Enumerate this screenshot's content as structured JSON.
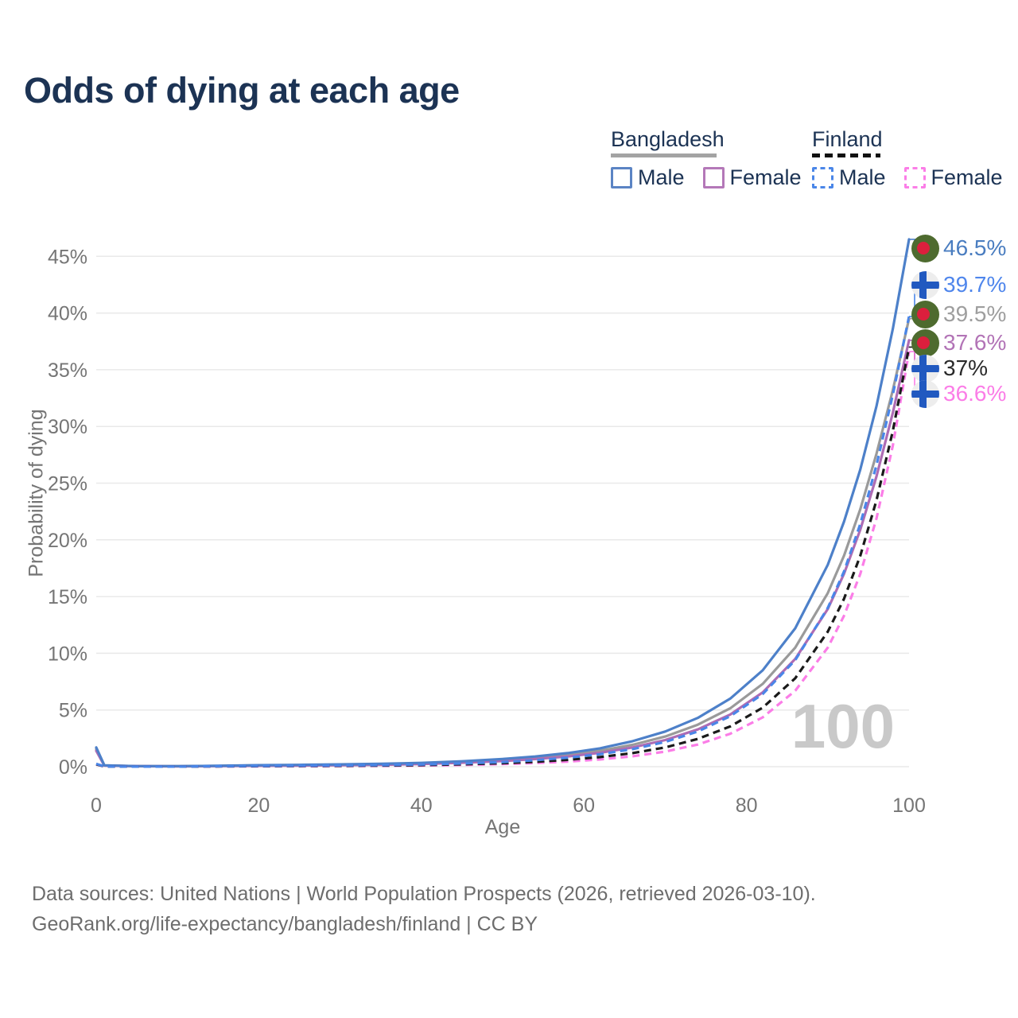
{
  "page": {
    "title": "Odds of dying at each age",
    "watermark_age": "100",
    "footer_line1": "Data sources: United Nations | World Population Prospects (2026, retrieved 2026-03-10).",
    "footer_line2": "GeoRank.org/life-expectancy/bangladesh/finland | CC BY"
  },
  "legend": {
    "bangladesh": {
      "label": "Bangladesh",
      "male_label": "Male",
      "female_label": "Female"
    },
    "finland": {
      "label": "Finland",
      "male_label": "Male",
      "female_label": "Female"
    }
  },
  "colors": {
    "title_text": "#1c3354",
    "axis_text": "#757575",
    "grid_line": "#e9e9e9",
    "watermark": "#c9c9c9",
    "footer_text": "#6d6d6d",
    "bd_underline": "#a3a3a3",
    "fi_underline": "#111111",
    "bd_male": "#4d80c9",
    "bd_both": "#9a9a9a",
    "bd_female": "#ae6cb4",
    "fi_male": "#4a86e8",
    "fi_both": "#1a1a1a",
    "fi_female": "#fb7de7",
    "bd_flag_green": "#4e6b2f",
    "bd_flag_red": "#dc1f3d",
    "fi_flag_bg": "#ededed",
    "fi_flag_blue": "#2159c0"
  },
  "chart_data": {
    "type": "line",
    "title": "Odds of dying at each age",
    "xlabel": "Age",
    "ylabel": "Probability of dying",
    "x_ticks": [
      0,
      20,
      40,
      60,
      80,
      100
    ],
    "y_tick_labels": [
      "0%",
      "5%",
      "10%",
      "15%",
      "20%",
      "25%",
      "30%",
      "35%",
      "40%",
      "45%"
    ],
    "y_ticks_percent": [
      0,
      5,
      10,
      15,
      20,
      25,
      30,
      35,
      40,
      45
    ],
    "xlim": [
      0,
      100
    ],
    "ylim_percent": [
      0,
      47
    ],
    "grid": "horizontal-only",
    "legend_position": "top-right",
    "watermark_age_shown": "100",
    "ages": [
      0,
      1,
      5,
      10,
      15,
      20,
      25,
      30,
      35,
      40,
      45,
      50,
      54,
      58,
      62,
      66,
      70,
      74,
      78,
      82,
      86,
      90,
      92,
      94,
      96,
      98,
      100
    ],
    "series": [
      {
        "name": "Bangladesh Both sexes",
        "country": "Bangladesh",
        "sex": "Both",
        "dashed": false,
        "color": "#9a9a9a",
        "label_color": "#9e9e9e",
        "flag": "bangladesh",
        "end_label": "39.5%",
        "end_value_percent": 39.5,
        "values_percent": [
          1.55,
          0.11,
          0.04,
          0.04,
          0.07,
          0.11,
          0.13,
          0.16,
          0.21,
          0.29,
          0.41,
          0.58,
          0.77,
          1.03,
          1.4,
          1.93,
          2.66,
          3.7,
          5.15,
          7.3,
          10.5,
          15.3,
          18.6,
          22.7,
          27.6,
          33.2,
          39.5
        ]
      },
      {
        "name": "Bangladesh Female",
        "country": "Bangladesh",
        "sex": "Female",
        "dashed": false,
        "color": "#ae6cb4",
        "label_color": "#b273b6",
        "flag": "bangladesh",
        "end_label": "37.6%",
        "end_value_percent": 37.6,
        "values_percent": [
          1.4,
          0.1,
          0.04,
          0.03,
          0.05,
          0.08,
          0.1,
          0.13,
          0.17,
          0.24,
          0.35,
          0.5,
          0.67,
          0.9,
          1.23,
          1.7,
          2.35,
          3.28,
          4.6,
          6.55,
          9.5,
          13.9,
          17.0,
          20.9,
          25.6,
          31.2,
          37.6
        ]
      },
      {
        "name": "Bangladesh Male",
        "country": "Bangladesh",
        "sex": "Male",
        "dashed": false,
        "color": "#4d80c9",
        "label_color": "#4a7dc0",
        "flag": "bangladesh",
        "end_label": "46.5%",
        "end_value_percent": 46.5,
        "values_percent": [
          1.7,
          0.12,
          0.05,
          0.05,
          0.08,
          0.13,
          0.16,
          0.2,
          0.25,
          0.34,
          0.48,
          0.68,
          0.9,
          1.2,
          1.62,
          2.25,
          3.1,
          4.3,
          6.0,
          8.5,
          12.2,
          17.8,
          21.6,
          26.2,
          31.8,
          38.6,
          46.5
        ]
      },
      {
        "name": "Finland Female",
        "country": "Finland",
        "sex": "Female",
        "dashed": true,
        "color": "#fb7de7",
        "label_color": "#fb7de7",
        "flag": "finland",
        "end_label": "36.6%",
        "end_value_percent": 36.6,
        "values_percent": [
          0.2,
          0.015,
          0.008,
          0.008,
          0.02,
          0.03,
          0.04,
          0.05,
          0.07,
          0.1,
          0.15,
          0.23,
          0.32,
          0.45,
          0.64,
          0.92,
          1.33,
          1.95,
          2.9,
          4.35,
          6.7,
          10.5,
          13.3,
          17.0,
          21.9,
          28.3,
          36.6
        ]
      },
      {
        "name": "Finland Both sexes",
        "country": "Finland",
        "sex": "Both",
        "dashed": true,
        "color": "#1a1a1a",
        "label_color": "#2a2a2a",
        "flag": "finland",
        "end_label": "37%",
        "end_value_percent": 37.0,
        "values_percent": [
          0.22,
          0.018,
          0.009,
          0.009,
          0.03,
          0.05,
          0.065,
          0.08,
          0.1,
          0.14,
          0.21,
          0.31,
          0.43,
          0.6,
          0.85,
          1.2,
          1.7,
          2.45,
          3.55,
          5.2,
          7.8,
          11.9,
          14.8,
          18.6,
          23.5,
          29.6,
          37.0
        ]
      },
      {
        "name": "Finland Male",
        "country": "Finland",
        "sex": "Male",
        "dashed": true,
        "color": "#4a86e8",
        "label_color": "#4f86ec",
        "flag": "finland",
        "end_label": "39.7%",
        "end_value_percent": 39.7,
        "values_percent": [
          0.25,
          0.02,
          0.01,
          0.01,
          0.04,
          0.07,
          0.09,
          0.11,
          0.14,
          0.19,
          0.28,
          0.41,
          0.57,
          0.79,
          1.1,
          1.55,
          2.18,
          3.1,
          4.45,
          6.4,
          9.4,
          14.0,
          17.2,
          21.4,
          26.6,
          32.8,
          39.7
        ]
      }
    ]
  }
}
